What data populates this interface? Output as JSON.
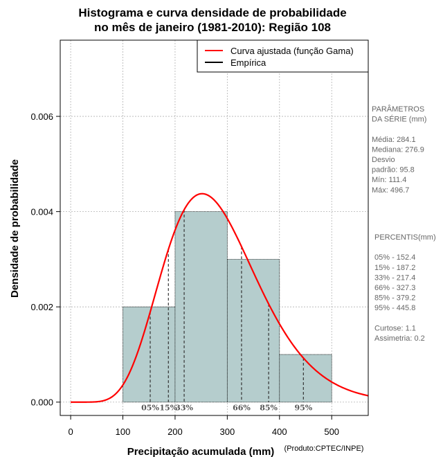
{
  "chart_data": {
    "type": "histogram",
    "title_lines": [
      "Histograma e curva densidade de probabilidade",
      "no mês de janeiro (1981-2010): Região 108"
    ],
    "xlabel": "Precipitação acumulada (mm)",
    "ylabel": "Densidade de probabilidade",
    "credit": "(Produto:CPTEC/INPE)",
    "xlim": [
      -20,
      570
    ],
    "ylim": [
      -0.00028,
      0.0076
    ],
    "x_ticks": [
      0,
      100,
      200,
      300,
      400,
      500
    ],
    "x_tick_labels": [
      "0",
      "100",
      "200",
      "300",
      "400",
      "500"
    ],
    "y_ticks": [
      0,
      0.002,
      0.004,
      0.006
    ],
    "y_tick_labels": [
      "0.000",
      "0.002",
      "0.004",
      "0.006"
    ],
    "grid": true,
    "bins": [
      {
        "start": 100,
        "end": 200,
        "density": 0.002
      },
      {
        "start": 200,
        "end": 300,
        "density": 0.004
      },
      {
        "start": 300,
        "end": 400,
        "density": 0.003
      },
      {
        "start": 400,
        "end": 500,
        "density": 0.001
      }
    ],
    "fitted_curve": {
      "name": "Curva ajustada (função Gama)",
      "color": "#ff0000",
      "distribution": "gamma",
      "mean": 284.1,
      "sd": 95.8
    },
    "legend": [
      {
        "label": "Curva ajustada (função Gama)",
        "color": "#ff0000"
      },
      {
        "label": "Empírica",
        "color": "#000000"
      }
    ],
    "percentile_lines": [
      {
        "label": "05%",
        "x": 152.4
      },
      {
        "label": "15%",
        "x": 187.2
      },
      {
        "label": "33%",
        "x": 217.4
      },
      {
        "label": "66%",
        "x": 327.3
      },
      {
        "label": "85%",
        "x": 379.2
      },
      {
        "label": "95%",
        "x": 445.8
      }
    ],
    "colors": {
      "bar_fill": "#b5cdcd",
      "curve": "#ff0000",
      "grid": "#b0b0b0"
    }
  },
  "side_panel": {
    "params_lines": [
      "PARÂMETROS",
      " DA SÉRIE (mm)",
      "",
      "Média:  284.1",
      "Mediana:  276.9",
      "Desvio",
      "padrão:  95.8",
      "Mín:  111.4",
      "Máx:  496.7"
    ],
    "percentis_lines": [
      "PERCENTIS(mm)",
      "",
      "05% -  152.4",
      "15% -  187.2",
      "33% -  217.4",
      "66% -  327.3",
      "85% -  379.2",
      "95% -  445.8",
      "",
      "Curtose:  1.1",
      "Assimetria:  0.2"
    ]
  }
}
